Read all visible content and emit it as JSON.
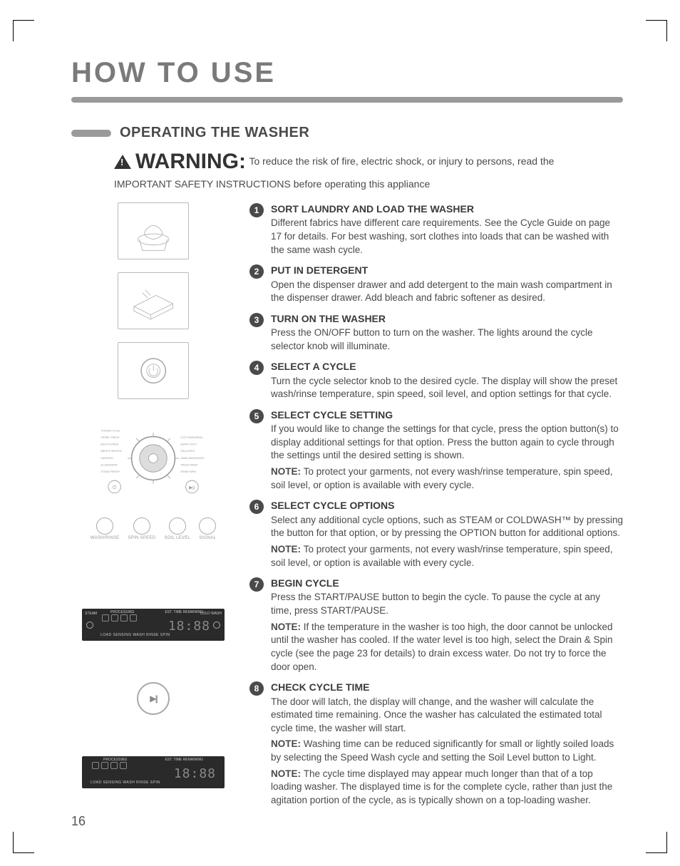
{
  "page_title": "HOW TO USE",
  "section_heading": "OPERATING THE WASHER",
  "warning": {
    "label": "WARNING:",
    "text": "To reduce the risk of fire, electric shock, or injury to persons, read the",
    "sub": "IMPORTANT SAFETY INSTRUCTIONS before operating this appliance"
  },
  "option_buttons": [
    "WASH/RINSE",
    "SPIN SPEED",
    "SOIL LEVEL",
    "SIGNAL"
  ],
  "dial_labels": {
    "left": [
      "*STEAM CYCLE",
      "*PERM. PRESS",
      "BULKY/LARGE",
      "BRIGHT WHITES*",
      "SANITARY",
      "ALLERGIENE*",
      "STEAM FRESH*"
    ],
    "right": [
      "COTTON/NORMAL",
      "HEAVY DUTY",
      "DELICATES",
      "HAND WASH/WOOL",
      "SPEED WASH",
      "RINSE+SPIN"
    ]
  },
  "display": {
    "proc_label": "PROCESSING",
    "time_label": "EST. TIME REMAINING",
    "left_tag": "STEAM",
    "right_tag": "COLD WASH",
    "stages": "LOAD SENSING WASH  RINSE  SPIN",
    "digits": "18:88"
  },
  "steps": [
    {
      "num": "1",
      "title": "SORT LAUNDRY AND LOAD THE WASHER",
      "paras": [
        "Different fabrics have different care requirements. See the Cycle Guide on page 17  for details. For best washing, sort clothes into loads that can be washed with the same wash cycle."
      ]
    },
    {
      "num": "2",
      "title": "PUT IN DETERGENT",
      "paras": [
        "Open the dispenser drawer and add detergent to the main wash compartment in the dispenser drawer. Add bleach and fabric softener as desired."
      ]
    },
    {
      "num": "3",
      "title": "TURN ON THE WASHER",
      "paras": [
        "Press the ON/OFF button to turn on the washer. The lights around the cycle selector knob will illuminate."
      ]
    },
    {
      "num": "4",
      "title": "SELECT A CYCLE",
      "paras": [
        "Turn the cycle selector knob to the desired cycle. The display will show the preset wash/rinse temperature, spin speed, soil level, and option settings for that cycle."
      ]
    },
    {
      "num": "5",
      "title": "SELECT CYCLE SETTING",
      "paras": [
        "If you would like to change the settings for that cycle, press the option button(s) to display additional settings for that option. Press the button again to cycle through the settings until the desired setting is shown."
      ],
      "notes": [
        "To protect your garments, not every wash/rinse temperature, spin speed, soil level, or option is available with every cycle."
      ]
    },
    {
      "num": "6",
      "title": "SELECT CYCLE OPTIONS",
      "paras": [
        "Select any additional cycle options, such as STEAM or COLDWASH™ by pressing the button for that option, or by pressing the OPTION button for additional options."
      ],
      "notes": [
        "To protect your garments, not every wash/rinse temperature, spin speed, soil level, or option is available with every cycle."
      ]
    },
    {
      "num": "7",
      "title": "BEGIN CYCLE",
      "paras": [
        "Press the START/PAUSE button to begin the cycle. To pause the cycle at any time, press START/PAUSE."
      ],
      "notes": [
        "If the temperature in the washer is too high, the door cannot be unlocked until the washer has cooled. If the water level is too high, select the Drain & Spin cycle (see the page 23 for details) to drain excess water. Do not try to force the door open."
      ]
    },
    {
      "num": "8",
      "title": "CHECK CYCLE TIME",
      "paras": [
        "The door will latch, the display will change, and the washer will calculate the estimated time remaining. Once the washer has calculated the estimated total cycle time, the washer will start."
      ],
      "notes": [
        "Washing time can be reduced significantly for small or lightly soiled loads by selecting the Speed Wash cycle and setting the Soil Level button to Light.",
        "The cycle time displayed may appear much longer than that of a top loading washer. The displayed time is for the complete cycle, rather than just the agitation portion of the cycle, as is typically shown on a top-loading washer."
      ]
    }
  ],
  "note_label": "NOTE:",
  "page_number": "16",
  "colors": {
    "text": "#4a4a4a",
    "heading_gray": "#7a7a7a",
    "rule_gray": "#9a9a9a",
    "step_badge": "#4a4a4a",
    "panel_bg": "#2a2a2a"
  }
}
